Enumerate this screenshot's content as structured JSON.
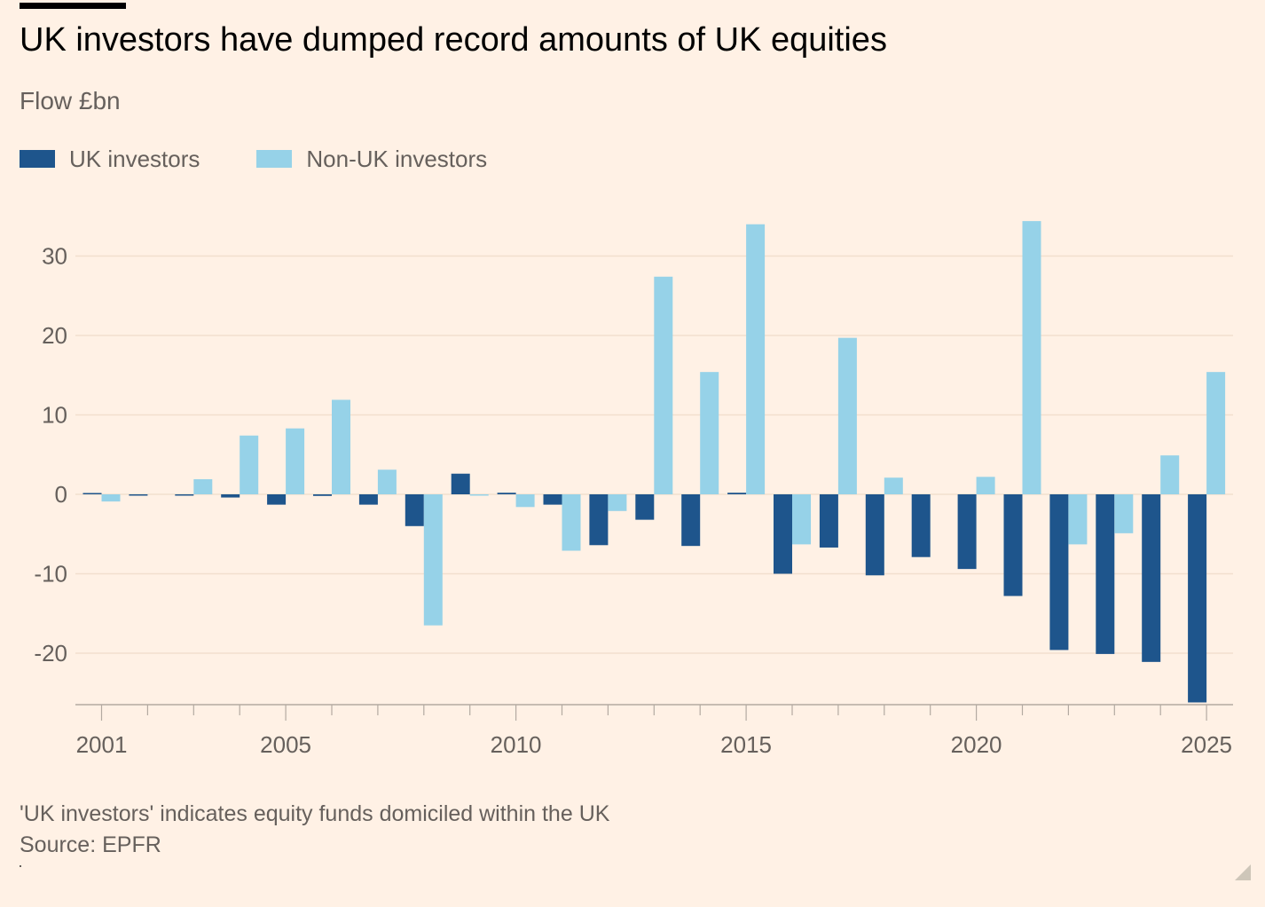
{
  "header": {
    "title": "UK investors have dumped record amounts of UK equities",
    "subtitle": "Flow £bn"
  },
  "legend": {
    "items": [
      {
        "label": "UK investors",
        "color": "#1E558C"
      },
      {
        "label": "Non-UK investors",
        "color": "#96D2E8"
      }
    ]
  },
  "footer": {
    "note": "'UK investors' indicates equity funds domiciled within the UK",
    "source": "Source: EPFR"
  },
  "colors": {
    "background": "#FFF1E5",
    "grid": "#F2DFCE",
    "axis": "#B3AAA1",
    "uk": "#1E558C",
    "non_uk": "#96D2E8"
  },
  "chart_data": {
    "type": "bar",
    "title": "UK investors have dumped record amounts of UK equities",
    "ylabel": "Flow £bn",
    "xlabel": "",
    "ylim": [
      -26,
      35
    ],
    "yticks": [
      30,
      20,
      10,
      0,
      -10,
      -20
    ],
    "ytick_labels": [
      "30",
      "20",
      "10",
      "0",
      "-10",
      "-20"
    ],
    "xtick_labels": [
      {
        "year": 2001,
        "label": "2001"
      },
      {
        "year": 2005,
        "label": "2005"
      },
      {
        "year": 2010,
        "label": "2010"
      },
      {
        "year": 2015,
        "label": "2015"
      },
      {
        "year": 2020,
        "label": "2020"
      },
      {
        "year": 2025,
        "label": "2025"
      }
    ],
    "categories": [
      2001,
      2002,
      2003,
      2004,
      2005,
      2006,
      2007,
      2008,
      2009,
      2010,
      2011,
      2012,
      2013,
      2014,
      2015,
      2016,
      2017,
      2018,
      2019,
      2020,
      2021,
      2022,
      2023,
      2024,
      2025
    ],
    "grid": true,
    "legend_position": "top-left",
    "series": [
      {
        "name": "UK investors",
        "values": [
          0.1,
          -0.1,
          -0.1,
          -0.4,
          -1.3,
          -0.2,
          -1.3,
          -4.0,
          2.6,
          0.2,
          -1.3,
          -6.4,
          -3.2,
          -6.5,
          0.2,
          -10.0,
          -6.7,
          -10.2,
          -7.9,
          -9.4,
          -12.8,
          -19.6,
          -20.1,
          -21.1,
          -26.2
        ]
      },
      {
        "name": "Non-UK investors",
        "values": [
          -0.9,
          0.0,
          1.9,
          7.4,
          8.3,
          11.9,
          3.1,
          -16.5,
          -0.1,
          -1.6,
          -7.1,
          -2.1,
          27.4,
          15.4,
          34.0,
          -6.3,
          19.7,
          2.1,
          0.0,
          2.2,
          34.4,
          -6.3,
          -4.9,
          4.9,
          15.4
        ]
      }
    ]
  }
}
